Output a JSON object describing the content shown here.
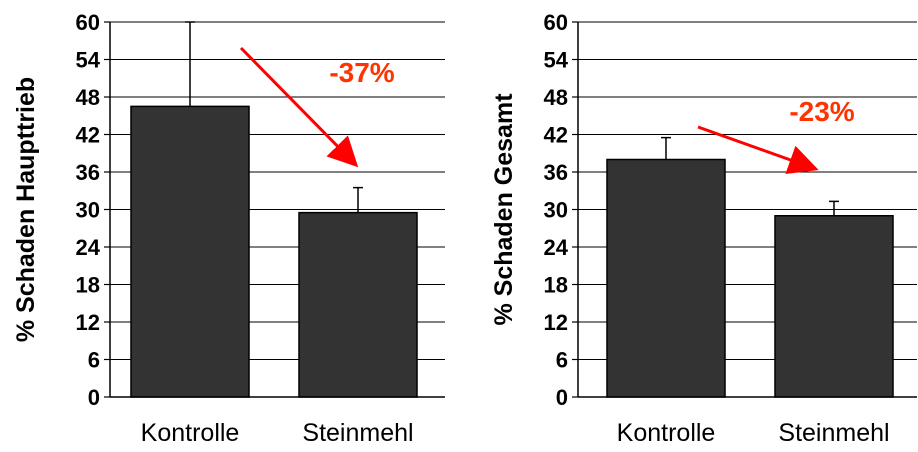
{
  "chart_data": [
    {
      "type": "bar",
      "title": "",
      "xlabel": "",
      "ylabel": "% Schaden Haupttrieb",
      "categories": [
        "Kontrolle",
        "Steinmehl"
      ],
      "values": [
        46.5,
        29.5
      ],
      "error": [
        13.5,
        4.0
      ],
      "ylim": [
        0,
        60
      ],
      "yticks": [
        "0",
        "6",
        "12",
        "18",
        "24",
        "30",
        "36",
        "42",
        "48",
        "54",
        "60"
      ],
      "grid": true,
      "legend": "none",
      "annotation": "-37%",
      "colors": {
        "bar": "#333333",
        "error": "#000000",
        "arrow": "#ff0000",
        "annotation": "#ff3300"
      }
    },
    {
      "type": "bar",
      "title": "",
      "xlabel": "",
      "ylabel": "% Schaden Gesamt",
      "categories": [
        "Kontrolle",
        "Steinmehl"
      ],
      "values": [
        38,
        29
      ],
      "error": [
        3.5,
        2.3
      ],
      "ylim": [
        0,
        60
      ],
      "yticks": [
        "0",
        "6",
        "12",
        "18",
        "24",
        "30",
        "36",
        "42",
        "48",
        "54",
        "60"
      ],
      "grid": true,
      "legend": "none",
      "annotation": "-23%",
      "colors": {
        "bar": "#333333",
        "error": "#000000",
        "arrow": "#ff0000",
        "annotation": "#ff3300"
      }
    }
  ]
}
